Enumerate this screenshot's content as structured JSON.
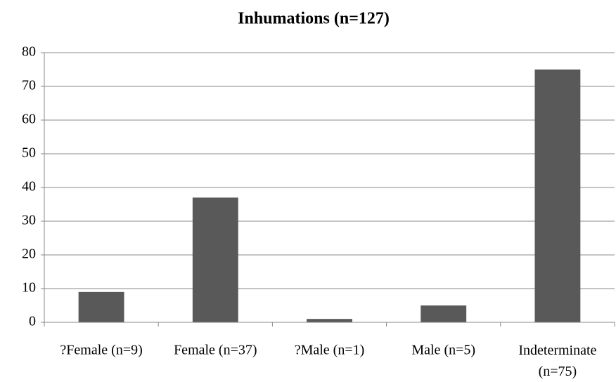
{
  "chart_data": {
    "type": "bar",
    "title": "Inhumations (n=127)",
    "categories": [
      "?Female (n=9)",
      "Female (n=37)",
      "?Male (n=1)",
      "Male (n=5)",
      "Indeterminate (n=75)"
    ],
    "values": [
      9,
      37,
      1,
      5,
      75
    ],
    "color": "#595959",
    "ylim": [
      0,
      80
    ],
    "yticks": [
      0,
      10,
      20,
      30,
      40,
      50,
      60,
      70,
      80
    ],
    "grid": true
  }
}
